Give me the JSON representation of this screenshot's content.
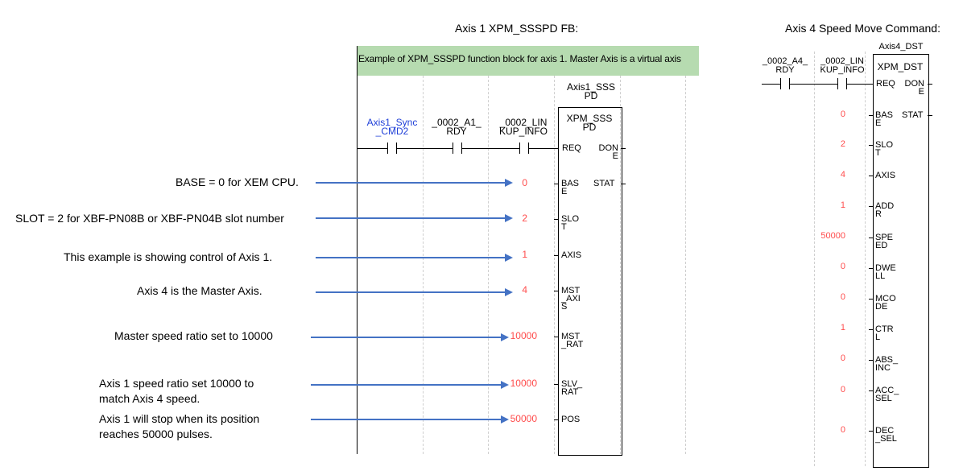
{
  "titles": {
    "left": "Axis 1 XPM_SSSPD FB:",
    "right": "Axis 4 Speed Move Command:"
  },
  "banner": "Example of XPM_SSSPD function block for axis 1. Master Axis is a virtual axis",
  "colors": {
    "banner_bg": "#b6dbb0",
    "arrow": "#4472c4",
    "value": "#ff4c4c",
    "contact_label": "#1f3fd8"
  },
  "fb1": {
    "instance": [
      "Axis1_SSS",
      "PD"
    ],
    "type": [
      "XPM_SSS",
      "PD"
    ],
    "contacts": [
      {
        "label": [
          "Axis1_Sync",
          "_CMD2"
        ]
      },
      {
        "label": [
          "_0002_A1_",
          "RDY"
        ]
      },
      {
        "label": [
          "_0002_LIN",
          "KUP_INFO"
        ]
      }
    ],
    "pins_left": [
      {
        "name": [
          "REQ"
        ],
        "value": ""
      },
      {
        "name": [
          "BAS",
          "E"
        ],
        "value": "0"
      },
      {
        "name": [
          "SLO",
          "T"
        ],
        "value": "2"
      },
      {
        "name": [
          "AXIS"
        ],
        "value": "1"
      },
      {
        "name": [
          "MST",
          "_AXI",
          "S"
        ],
        "value": "4"
      },
      {
        "name": [
          "MST",
          "_RAT"
        ],
        "value": "10000"
      },
      {
        "name": [
          "SLV_",
          "RAT"
        ],
        "value": "10000"
      },
      {
        "name": [
          "POS"
        ],
        "value": "50000"
      }
    ],
    "pins_right": [
      {
        "name": [
          "DON",
          "E"
        ]
      },
      {
        "name": [
          "STAT"
        ]
      }
    ]
  },
  "notes": [
    "BASE = 0 for XEM CPU.",
    "SLOT = 2 for XBF-PN08B or XBF-PN04B slot number",
    "This example is showing control of Axis 1.",
    "Axis 4 is the Master Axis.",
    "Master speed ratio set to 10000",
    "Axis 1 speed ratio set 10000 to match Axis 4 speed.",
    "Axis 1 will stop when its position reaches 50000 pulses."
  ],
  "fb2": {
    "instance": "Axis4_DST",
    "type": "XPM_DST",
    "contacts": [
      {
        "label": [
          "_0002_A4_",
          "RDY"
        ]
      },
      {
        "label": [
          "_0002_LIN",
          "KUP_INFO"
        ]
      }
    ],
    "pins_left": [
      {
        "name": [
          "REQ"
        ],
        "value": ""
      },
      {
        "name": [
          "BAS",
          "E"
        ],
        "value": "0"
      },
      {
        "name": [
          "SLO",
          "T"
        ],
        "value": "2"
      },
      {
        "name": [
          "AXIS"
        ],
        "value": "4"
      },
      {
        "name": [
          "ADD",
          "R"
        ],
        "value": "1"
      },
      {
        "name": [
          "SPE",
          "ED"
        ],
        "value": "50000"
      },
      {
        "name": [
          "DWE",
          "LL"
        ],
        "value": "0"
      },
      {
        "name": [
          "MCO",
          "DE"
        ],
        "value": "0"
      },
      {
        "name": [
          "CTR",
          "L"
        ],
        "value": "1"
      },
      {
        "name": [
          "ABS_",
          "INC"
        ],
        "value": "0"
      },
      {
        "name": [
          "ACC_",
          "SEL"
        ],
        "value": "0"
      },
      {
        "name": [
          "DEC",
          "_SEL"
        ],
        "value": "0"
      }
    ],
    "pins_right": [
      {
        "name": [
          "DON",
          "E"
        ]
      },
      {
        "name": [
          "STAT"
        ]
      }
    ]
  }
}
